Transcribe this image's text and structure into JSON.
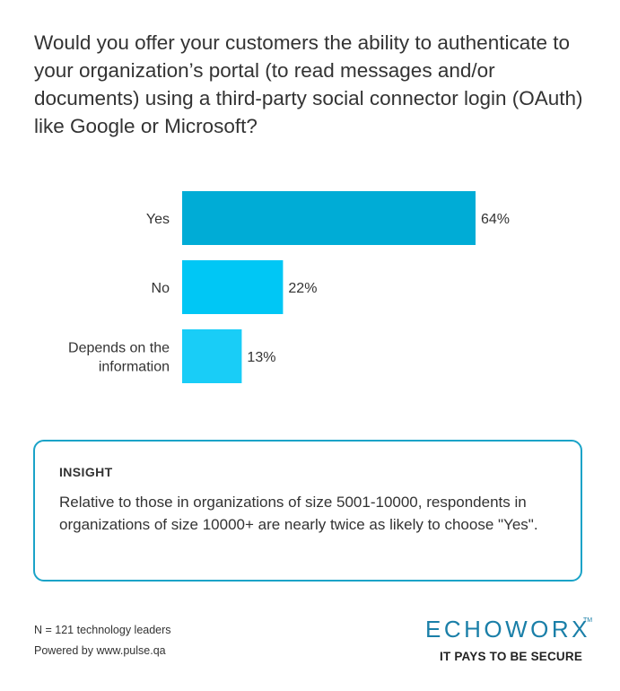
{
  "question": "Would you offer your customers the ability to authenticate to your organization’s portal (to read messages and/or documents) using a third-party social connector login (OAuth) like Google or Microsoft?",
  "chart_data": {
    "type": "bar",
    "orientation": "horizontal",
    "categories": [
      "Yes",
      "No",
      "Depends on the information"
    ],
    "category_lines": [
      [
        "Yes"
      ],
      [
        "No"
      ],
      [
        "Depends on the",
        "information"
      ]
    ],
    "values": [
      64,
      22,
      13
    ],
    "value_labels": [
      "64%",
      "22%",
      "13%"
    ],
    "unit": "%",
    "colors": [
      "#00acd6",
      "#00c7f5",
      "#19cdf7"
    ],
    "grid": false,
    "legend": "none"
  },
  "insight": {
    "title": "INSIGHT",
    "text": "Relative to those in organizations of size 5001-10000, respondents in organizations of size 10000+ are nearly twice as likely to choose \"Yes\"."
  },
  "footer": {
    "sample": "N = 121 technology leaders",
    "powered_by": "Powered by www.pulse.qa"
  },
  "logo": {
    "wordmark": "ECHOWORX",
    "trademark": "TM",
    "tagline": "IT PAYS TO BE SECURE",
    "color": "#1a7fa8"
  }
}
